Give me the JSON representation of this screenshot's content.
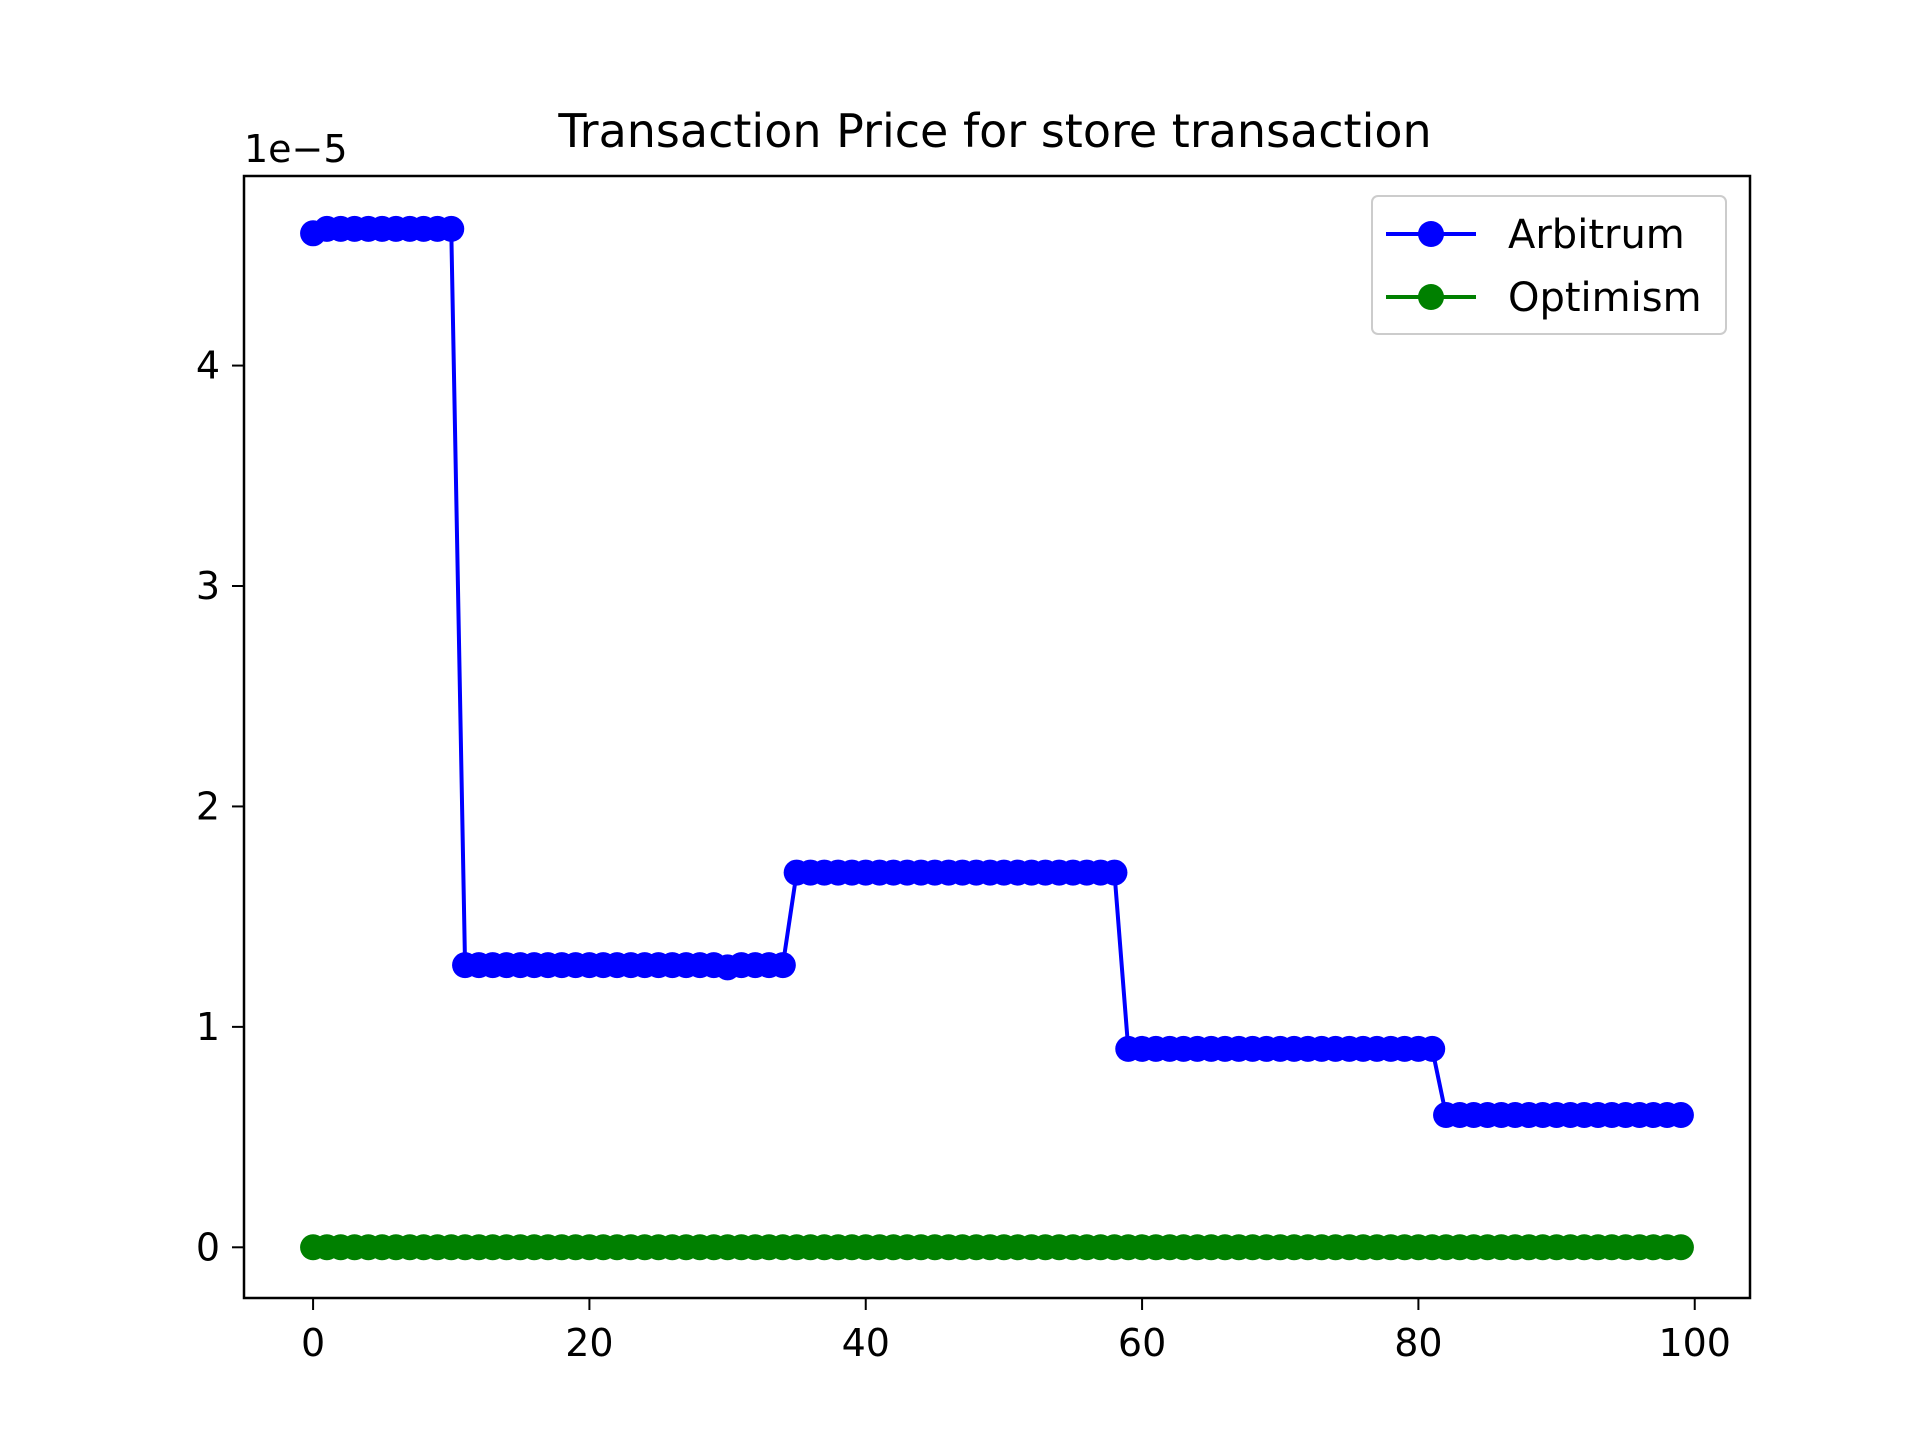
{
  "chart_data": {
    "type": "line",
    "title": "Transaction Price for store transaction",
    "xlabel": "",
    "ylabel": "",
    "y_offset_label": "1e−5",
    "xlim": [
      -5,
      104
    ],
    "ylim": [
      -2.3e-06,
      4.86e-05
    ],
    "x_ticks": [
      0,
      20,
      40,
      60,
      80,
      100
    ],
    "x_tick_labels": [
      "0",
      "20",
      "40",
      "60",
      "80",
      "100"
    ],
    "y_ticks": [
      0,
      1e-05,
      2e-05,
      3e-05,
      4e-05
    ],
    "y_tick_labels": [
      "0",
      "1",
      "2",
      "3",
      "4"
    ],
    "grid": false,
    "legend_position": "upper right",
    "series": [
      {
        "name": "Arbitrum",
        "color": "#0000ff",
        "marker": "circle",
        "segments": [
          {
            "from_x": 0,
            "to_x": 0,
            "value": 4.6e-05
          },
          {
            "from_x": 1,
            "to_x": 10,
            "value": 4.62e-05
          },
          {
            "from_x": 11,
            "to_x": 34,
            "value": 1.28e-05
          },
          {
            "from_x": 35,
            "to_x": 58,
            "value": 1.7e-05
          },
          {
            "from_x": 59,
            "to_x": 81,
            "value": 9e-06
          },
          {
            "from_x": 82,
            "to_x": 99,
            "value": 6e-06
          }
        ],
        "point_overrides": [
          {
            "x": 30,
            "value": 1.27e-05
          }
        ]
      },
      {
        "name": "Optimism",
        "color": "#008000",
        "marker": "circle",
        "segments": [
          {
            "from_x": 0,
            "to_x": 99,
            "value": 0
          }
        ]
      }
    ]
  }
}
